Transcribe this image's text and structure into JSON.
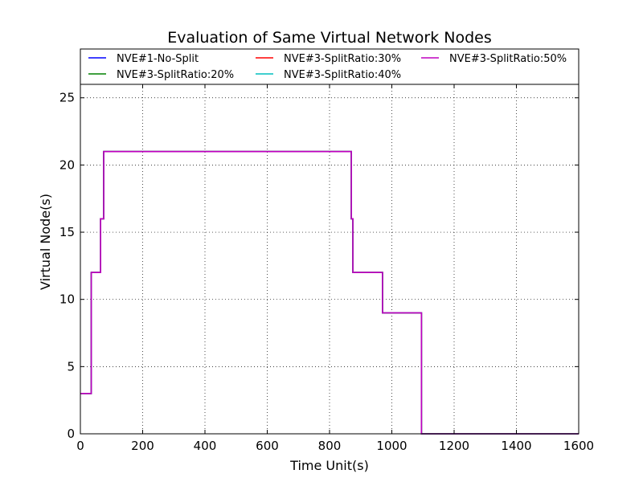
{
  "chart_data": {
    "type": "line",
    "title": "Evaluation of Same Virtual Network Nodes",
    "xlabel": "Time Unit(s)",
    "ylabel": "Virtual Node(s)",
    "xlim": [
      0,
      1600
    ],
    "ylim": [
      0,
      26
    ],
    "xticks": [
      "0",
      "200",
      "400",
      "600",
      "800",
      "1000",
      "1200",
      "1400",
      "1600"
    ],
    "yticks": [
      "0",
      "5",
      "10",
      "15",
      "20",
      "25"
    ],
    "grid": true,
    "legend_position": "top",
    "step": true,
    "series": [
      {
        "name": "NVE#1-No-Split",
        "color": "#0000ff",
        "x": [
          0,
          35,
          65,
          75,
          870,
          875,
          970,
          1095,
          1600
        ],
        "y": [
          3,
          12,
          16,
          21,
          16,
          12,
          9,
          0,
          0
        ]
      },
      {
        "name": "NVE#3-SplitRatio:20%",
        "color": "#008000",
        "x": [
          0,
          35,
          65,
          75,
          870,
          875,
          970,
          1095,
          1600
        ],
        "y": [
          3,
          12,
          16,
          21,
          16,
          12,
          9,
          0,
          0
        ]
      },
      {
        "name": "NVE#3-SplitRatio:30%",
        "color": "#ff0000",
        "x": [
          0,
          35,
          65,
          75,
          870,
          875,
          970,
          1095,
          1600
        ],
        "y": [
          3,
          12,
          16,
          21,
          16,
          12,
          9,
          0,
          0
        ]
      },
      {
        "name": "NVE#3-SplitRatio:40%",
        "color": "#00bfbf",
        "x": [
          0,
          35,
          65,
          75,
          870,
          875,
          970,
          1095,
          1600
        ],
        "y": [
          3,
          12,
          16,
          21,
          16,
          12,
          9,
          0,
          0
        ]
      },
      {
        "name": "NVE#3-SplitRatio:50%",
        "color": "#bf00bf",
        "x": [
          0,
          35,
          65,
          75,
          870,
          875,
          970,
          1095,
          1600
        ],
        "y": [
          3,
          12,
          16,
          21,
          16,
          12,
          9,
          0,
          0
        ]
      }
    ]
  }
}
